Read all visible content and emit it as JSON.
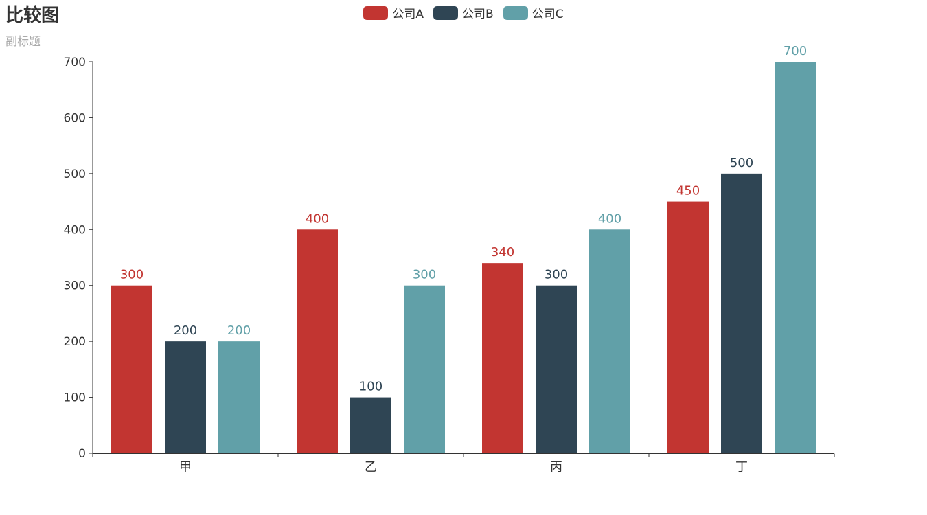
{
  "chart_data": {
    "type": "bar",
    "title": "比较图",
    "subtitle": "副标题",
    "categories": [
      "甲",
      "乙",
      "丙",
      "丁"
    ],
    "series": [
      {
        "name": "公司A",
        "color": "#c23531",
        "values": [
          300,
          400,
          340,
          450
        ]
      },
      {
        "name": "公司B",
        "color": "#2f4554",
        "values": [
          200,
          100,
          300,
          500
        ]
      },
      {
        "name": "公司C",
        "color": "#61a0a8",
        "values": [
          200,
          300,
          400,
          700
        ]
      }
    ],
    "yticks": [
      "0",
      "100",
      "200",
      "300",
      "400",
      "500",
      "600",
      "700"
    ],
    "ylim": [
      0,
      700
    ],
    "grid": false,
    "legend_position": "top-center"
  }
}
